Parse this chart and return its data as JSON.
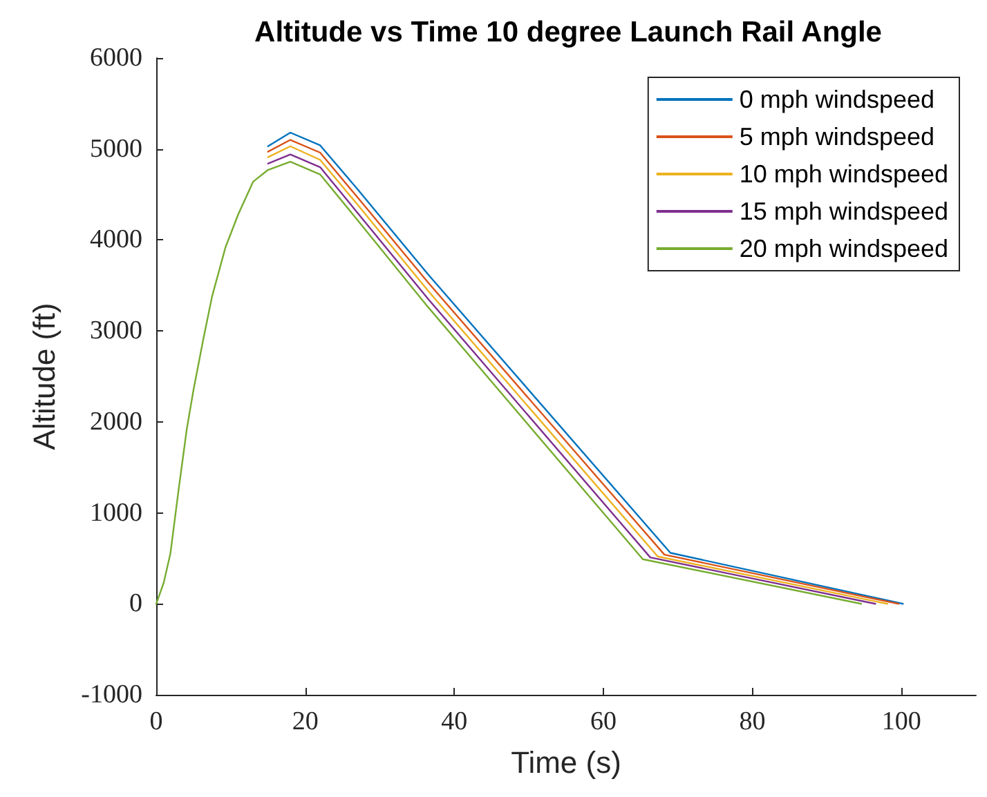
{
  "chart_data": {
    "type": "line",
    "title": "Altitude vs Time 10 degree Launch Rail Angle",
    "xlabel": "Time (s)",
    "ylabel": "Altitude (ft)",
    "xlim": [
      0,
      110
    ],
    "xticks": [
      0,
      20,
      40,
      60,
      80,
      100
    ],
    "ylim": [
      -1000,
      6000
    ],
    "yticks": [
      -1000,
      0,
      1000,
      2000,
      3000,
      4000,
      5000,
      6000
    ],
    "grid": false,
    "legend": "top right",
    "marker": "none",
    "line_style": "solid",
    "series": [
      {
        "name": "0 mph windspeed",
        "color": "#0072bd",
        "x": [
          15,
          18,
          22,
          27,
          36.5,
          69,
          100.2
        ],
        "values": [
          5030,
          5180,
          5040,
          4560,
          3620,
          560,
          0
        ]
      },
      {
        "name": "5 mph windspeed",
        "color": "#d95319",
        "x": [
          15,
          18,
          22,
          27,
          36.5,
          68.2,
          99.6
        ],
        "values": [
          4970,
          5100,
          4960,
          4470,
          3530,
          540,
          0
        ]
      },
      {
        "name": "10 mph windspeed",
        "color": "#edb120",
        "x": [
          15,
          18,
          22,
          27,
          36.5,
          67.3,
          98.1
        ],
        "values": [
          4910,
          5030,
          4880,
          4390,
          3440,
          520,
          0
        ]
      },
      {
        "name": "15 mph windspeed",
        "color": "#7e2f8e",
        "x": [
          15,
          18,
          22,
          27,
          36.5,
          66.3,
          96.5
        ],
        "values": [
          4840,
          4940,
          4800,
          4300,
          3350,
          510,
          0
        ]
      },
      {
        "name": "20 mph windspeed",
        "color": "#77ac30",
        "x": [
          0,
          1,
          1.9,
          3,
          4.1,
          5,
          6.3,
          7.5,
          9.3,
          11,
          13,
          15,
          18,
          22,
          27,
          36.5,
          65.3,
          94.6
        ],
        "values": [
          0,
          230,
          550,
          1250,
          1920,
          2350,
          2900,
          3380,
          3920,
          4280,
          4640,
          4770,
          4860,
          4720,
          4220,
          3260,
          490,
          0
        ]
      }
    ]
  }
}
